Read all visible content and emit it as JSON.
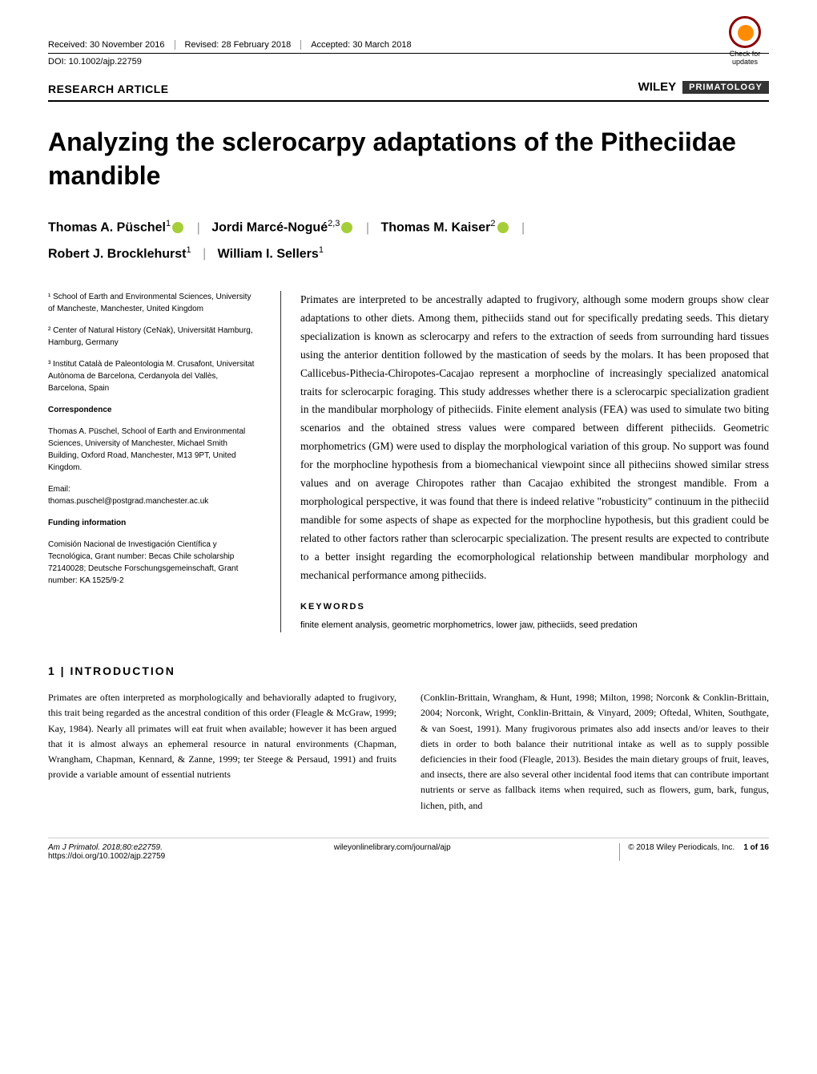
{
  "header": {
    "received": "Received: 30 November 2016",
    "revised": "Revised: 28 February 2018",
    "accepted": "Accepted: 30 March 2018",
    "doi": "DOI: 10.1002/ajp.22759",
    "article_type": "RESEARCH ARTICLE",
    "check_updates": "Check for updates",
    "publisher": "WILEY",
    "journal": "PRIMATOLOGY"
  },
  "title": "Analyzing the sclerocarpy adaptations of the Pitheciidae mandible",
  "authors": {
    "a1_name": "Thomas A. Püschel",
    "a1_aff": "1",
    "a2_name": "Jordi Marcé-Nogué",
    "a2_aff": "2,3",
    "a3_name": "Thomas M. Kaiser",
    "a3_aff": "2",
    "a4_name": "Robert J. Brocklehurst",
    "a4_aff": "1",
    "a5_name": "William I. Sellers",
    "a5_aff": "1"
  },
  "affiliations": {
    "aff1": "¹ School of Earth and Environmental Sciences, University of Mancheste, Manchester, United Kingdom",
    "aff2": "² Center of Natural History (CeNak), Universität Hamburg, Hamburg, Germany",
    "aff3": "³ Institut Català de Paleontologia M. Crusafont, Universitat Autònoma de Barcelona, Cerdanyola del Vallès, Barcelona, Spain"
  },
  "correspondence": {
    "head": "Correspondence",
    "body": "Thomas A. Püschel, School of Earth and Environmental Sciences, University of Manchester, Michael Smith Building, Oxford Road, Manchester, M13 9PT, United Kingdom.",
    "email_label": "Email:",
    "email": "thomas.puschel@postgrad.manchester.ac.uk"
  },
  "funding": {
    "head": "Funding information",
    "body": "Comisión Nacional de Investigación Científica y Tecnológica, Grant number: Becas Chile scholarship 72140028; Deutsche Forschungsgemeinschaft, Grant number: KA 1525/9-2"
  },
  "abstract": "Primates are interpreted to be ancestrally adapted to frugivory, although some modern groups show clear adaptations to other diets. Among them, pitheciids stand out for specifically predating seeds. This dietary specialization is known as sclerocarpy and refers to the extraction of seeds from surrounding hard tissues using the anterior dentition followed by the mastication of seeds by the molars. It has been proposed that Callicebus-Pithecia-Chiropotes-Cacajao represent a morphocline of increasingly specialized anatomical traits for sclerocarpic foraging. This study addresses whether there is a sclerocarpic specialization gradient in the mandibular morphology of pitheciids. Finite element analysis (FEA) was used to simulate two biting scenarios and the obtained stress values were compared between different pitheciids. Geometric morphometrics (GM) were used to display the morphological variation of this group. No support was found for the morphocline hypothesis from a biomechanical viewpoint since all pitheciins showed similar stress values and on average Chiropotes rather than Cacajao exhibited the strongest mandible. From a morphological perspective, it was found that there is indeed relative \"robusticity\" continuum in the pitheciid mandible for some aspects of shape as expected for the morphocline hypothesis, but this gradient could be related to other factors rather than sclerocarpic specialization. The present results are expected to contribute to a better insight regarding the ecomorphological relationship between mandibular morphology and mechanical performance among pitheciids.",
  "keywords": {
    "head": "KEYWORDS",
    "list": "finite element analysis, geometric morphometrics, lower jaw, pitheciids, seed predation"
  },
  "intro": {
    "head": "1 | INTRODUCTION",
    "col1": "Primates are often interpreted as morphologically and behaviorally adapted to frugivory, this trait being regarded as the ancestral condition of this order (Fleagle & McGraw, 1999; Kay, 1984). Nearly all primates will eat fruit when available; however it has been argued that it is almost always an ephemeral resource in natural environments (Chapman, Wrangham, Chapman, Kennard, & Zanne, 1999; ter Steege & Persaud, 1991) and fruits provide a variable amount of essential nutrients",
    "col2": "(Conklin-Brittain, Wrangham, & Hunt, 1998; Milton, 1998; Norconk & Conklin-Brittain, 2004; Norconk, Wright, Conklin-Brittain, & Vinyard, 2009; Oftedal, Whiten, Southgate, & van Soest, 1991). Many frugivorous primates also add insects and/or leaves to their diets in order to both balance their nutritional intake as well as to supply possible deficiencies in their food (Fleagle, 2013). Besides the main dietary groups of fruit, leaves, and insects, there are also several other incidental food items that can contribute important nutrients or serve as fallback items when required, such as flowers, gum, bark, fungus, lichen, pith, and"
  },
  "footer": {
    "citation": "Am J Primatol. 2018;80:e22759.",
    "url": "wileyonlinelibrary.com/journal/ajp",
    "copyright": "© 2018 Wiley Periodicals, Inc.",
    "page": "1 of 16",
    "doi_url": "https://doi.org/10.1002/ajp.22759"
  }
}
